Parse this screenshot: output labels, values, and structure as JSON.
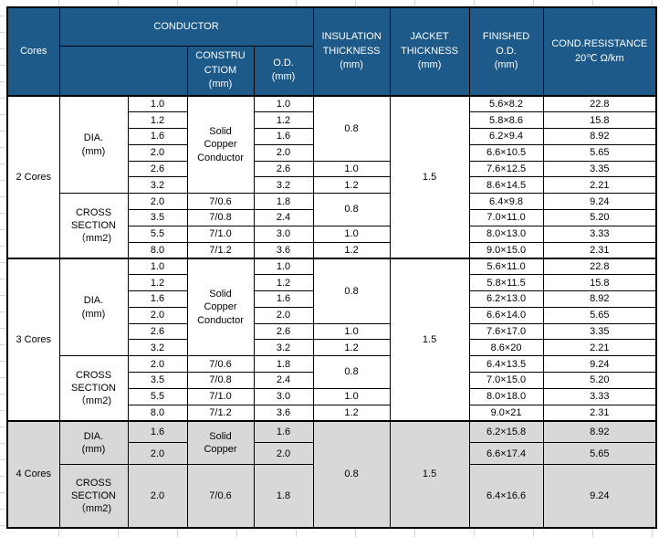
{
  "colors": {
    "header_blue": "#1E5A89",
    "section_gray": "#D8D8D8",
    "header_text": "#FFFFFF",
    "border": "#000000"
  },
  "table": {
    "header": {
      "cores": "Cores",
      "conductor": "CONDUCTOR",
      "conductor_sub_blank": "",
      "construction": "CONSTRU\nCTIOM\n(mm)",
      "od": "O.D.\n(mm)",
      "insulation": "INSULATION\nTHICKNESS\n(mm)",
      "jacket": "JACKET\nTHICKNESS\n(mm)",
      "finished": "FINISHED\nO.D.\n(mm)",
      "resistance": "COND.RESISTANCE\n20℃ Ω/km"
    },
    "body": {
      "rows": [
        {
          "cls": "sec-top",
          "cells": [
            {
              "t": "2 Cores",
              "rs": 10,
              "n": "cores-cell"
            },
            {
              "t": "DIA.\n(mm)",
              "rs": 6,
              "n": "row-label-cell"
            },
            {
              "t": "1.0",
              "n": "conductor-value-cell"
            },
            {
              "t": "Solid\nCopper\nConductor",
              "rs": 6,
              "n": "construction-cell"
            },
            {
              "t": "1.0",
              "n": "conductor-od-cell"
            },
            {
              "t": "0.8",
              "rs": 4,
              "n": "insulation-cell"
            },
            {
              "t": "1.5",
              "rs": 10,
              "n": "jacket-cell"
            },
            {
              "t": "5.6×8.2",
              "n": "finished-od-cell"
            },
            {
              "t": "22.8",
              "n": "resistance-cell"
            }
          ]
        },
        {
          "cells": [
            {
              "t": "1.2",
              "n": "conductor-value-cell"
            },
            {
              "t": "1.2",
              "n": "conductor-od-cell"
            },
            {
              "t": "5.8×8.6",
              "n": "finished-od-cell"
            },
            {
              "t": "15.8",
              "n": "resistance-cell"
            }
          ]
        },
        {
          "cells": [
            {
              "t": "1.6",
              "n": "conductor-value-cell"
            },
            {
              "t": "1.6",
              "n": "conductor-od-cell"
            },
            {
              "t": "6.2×9.4",
              "n": "finished-od-cell"
            },
            {
              "t": "8.92",
              "n": "resistance-cell"
            }
          ]
        },
        {
          "cells": [
            {
              "t": "2.0",
              "n": "conductor-value-cell"
            },
            {
              "t": "2.0",
              "n": "conductor-od-cell"
            },
            {
              "t": "6.6×10.5",
              "n": "finished-od-cell"
            },
            {
              "t": "5.65",
              "n": "resistance-cell"
            }
          ]
        },
        {
          "cells": [
            {
              "t": "2.6",
              "n": "conductor-value-cell"
            },
            {
              "t": "2.6",
              "n": "conductor-od-cell"
            },
            {
              "t": "1.0",
              "n": "insulation-cell"
            },
            {
              "t": "7.6×12.5",
              "n": "finished-od-cell"
            },
            {
              "t": "3.35",
              "n": "resistance-cell"
            }
          ]
        },
        {
          "cells": [
            {
              "t": "3.2",
              "n": "conductor-value-cell"
            },
            {
              "t": "3.2",
              "n": "conductor-od-cell"
            },
            {
              "t": "1.2",
              "n": "insulation-cell"
            },
            {
              "t": "8.6×14.5",
              "n": "finished-od-cell"
            },
            {
              "t": "2.21",
              "n": "resistance-cell"
            }
          ]
        },
        {
          "cells": [
            {
              "t": "CROSS\nSECTION\n（mm2)",
              "rs": 4,
              "n": "row-label-cell"
            },
            {
              "t": "2.0",
              "n": "conductor-value-cell"
            },
            {
              "t": "7/0.6",
              "n": "construction-cell"
            },
            {
              "t": "1.8",
              "n": "conductor-od-cell"
            },
            {
              "t": "0.8",
              "rs": 2,
              "n": "insulation-cell"
            },
            {
              "t": "6.4×9.8",
              "n": "finished-od-cell"
            },
            {
              "t": "9.24",
              "n": "resistance-cell"
            }
          ]
        },
        {
          "cells": [
            {
              "t": "3.5",
              "n": "conductor-value-cell"
            },
            {
              "t": "7/0.8",
              "n": "construction-cell"
            },
            {
              "t": "2.4",
              "n": "conductor-od-cell"
            },
            {
              "t": "7.0×11.0",
              "n": "finished-od-cell"
            },
            {
              "t": "5.20",
              "n": "resistance-cell"
            }
          ]
        },
        {
          "cells": [
            {
              "t": "5.5",
              "n": "conductor-value-cell"
            },
            {
              "t": "7/1.0",
              "n": "construction-cell"
            },
            {
              "t": "3.0",
              "n": "conductor-od-cell"
            },
            {
              "t": "1.0",
              "n": "insulation-cell"
            },
            {
              "t": "8.0×13.0",
              "n": "finished-od-cell"
            },
            {
              "t": "3.33",
              "n": "resistance-cell"
            }
          ]
        },
        {
          "cells": [
            {
              "t": "8.0",
              "n": "conductor-value-cell"
            },
            {
              "t": "7/1.2",
              "n": "construction-cell"
            },
            {
              "t": "3.6",
              "n": "conductor-od-cell"
            },
            {
              "t": "1.2",
              "n": "insulation-cell"
            },
            {
              "t": "9.0×15.0",
              "n": "finished-od-cell"
            },
            {
              "t": "2.31",
              "n": "resistance-cell"
            }
          ]
        },
        {
          "cls": "sec-top",
          "cells": [
            {
              "t": "3 Cores",
              "rs": 10,
              "n": "cores-cell"
            },
            {
              "t": "DIA.\n(mm)",
              "rs": 6,
              "n": "row-label-cell"
            },
            {
              "t": "1.0",
              "n": "conductor-value-cell"
            },
            {
              "t": "Solid\nCopper\nConductor",
              "rs": 6,
              "n": "construction-cell"
            },
            {
              "t": "1.0",
              "n": "conductor-od-cell"
            },
            {
              "t": "0.8",
              "rs": 4,
              "n": "insulation-cell"
            },
            {
              "t": "1.5",
              "rs": 10,
              "n": "jacket-cell"
            },
            {
              "t": "5.6×11.0",
              "n": "finished-od-cell"
            },
            {
              "t": "22.8",
              "n": "resistance-cell"
            }
          ]
        },
        {
          "cells": [
            {
              "t": "1.2",
              "n": "conductor-value-cell"
            },
            {
              "t": "1.2",
              "n": "conductor-od-cell"
            },
            {
              "t": "5.8×11.5",
              "n": "finished-od-cell"
            },
            {
              "t": "15.8",
              "n": "resistance-cell"
            }
          ]
        },
        {
          "cells": [
            {
              "t": "1.6",
              "n": "conductor-value-cell"
            },
            {
              "t": "1.6",
              "n": "conductor-od-cell"
            },
            {
              "t": "6.2×13.0",
              "n": "finished-od-cell"
            },
            {
              "t": "8.92",
              "n": "resistance-cell"
            }
          ]
        },
        {
          "cells": [
            {
              "t": "2.0",
              "n": "conductor-value-cell"
            },
            {
              "t": "2.0",
              "n": "conductor-od-cell"
            },
            {
              "t": "6.6×14.0",
              "n": "finished-od-cell"
            },
            {
              "t": "5.65",
              "n": "resistance-cell"
            }
          ]
        },
        {
          "cells": [
            {
              "t": "2.6",
              "n": "conductor-value-cell"
            },
            {
              "t": "2.6",
              "n": "conductor-od-cell"
            },
            {
              "t": "1.0",
              "n": "insulation-cell"
            },
            {
              "t": "7.6×17.0",
              "n": "finished-od-cell"
            },
            {
              "t": "3.35",
              "n": "resistance-cell"
            }
          ]
        },
        {
          "cells": [
            {
              "t": "3.2",
              "n": "conductor-value-cell"
            },
            {
              "t": "3.2",
              "n": "conductor-od-cell"
            },
            {
              "t": "1.2",
              "n": "insulation-cell"
            },
            {
              "t": "8.6×20",
              "n": "finished-od-cell"
            },
            {
              "t": "2.21",
              "n": "resistance-cell"
            }
          ]
        },
        {
          "cells": [
            {
              "t": "CROSS\nSECTION\n（mm2)",
              "rs": 4,
              "n": "row-label-cell"
            },
            {
              "t": "2.0",
              "n": "conductor-value-cell"
            },
            {
              "t": "7/0.6",
              "n": "construction-cell"
            },
            {
              "t": "1.8",
              "n": "conductor-od-cell"
            },
            {
              "t": "0.8",
              "rs": 2,
              "n": "insulation-cell"
            },
            {
              "t": "6.4×13.5",
              "n": "finished-od-cell"
            },
            {
              "t": "9.24",
              "n": "resistance-cell"
            }
          ]
        },
        {
          "cells": [
            {
              "t": "3.5",
              "n": "conductor-value-cell"
            },
            {
              "t": "7/0.8",
              "n": "construction-cell"
            },
            {
              "t": "2.4",
              "n": "conductor-od-cell"
            },
            {
              "t": "7.0×15.0",
              "n": "finished-od-cell"
            },
            {
              "t": "5.20",
              "n": "resistance-cell"
            }
          ]
        },
        {
          "cells": [
            {
              "t": "5.5",
              "n": "conductor-value-cell"
            },
            {
              "t": "7/1.0",
              "n": "construction-cell"
            },
            {
              "t": "3.0",
              "n": "conductor-od-cell"
            },
            {
              "t": "1.0",
              "n": "insulation-cell"
            },
            {
              "t": "8.0×18.0",
              "n": "finished-od-cell"
            },
            {
              "t": "3.33",
              "n": "resistance-cell"
            }
          ]
        },
        {
          "cells": [
            {
              "t": "8.0",
              "n": "conductor-value-cell"
            },
            {
              "t": "7/1.2",
              "n": "construction-cell"
            },
            {
              "t": "3.6",
              "n": "conductor-od-cell"
            },
            {
              "t": "1.2",
              "n": "insulation-cell"
            },
            {
              "t": "9.0×21",
              "n": "finished-od-cell"
            },
            {
              "t": "2.31",
              "n": "resistance-cell"
            }
          ]
        },
        {
          "cls": "gray sec-top h24",
          "cells": [
            {
              "t": "4 Cores",
              "rs": 3,
              "n": "cores-cell"
            },
            {
              "t": "DIA.\n(mm)",
              "rs": 2,
              "n": "row-label-cell"
            },
            {
              "t": "1.6",
              "n": "conductor-value-cell"
            },
            {
              "t": "Solid\nCopper",
              "rs": 2,
              "n": "construction-cell"
            },
            {
              "t": "1.6",
              "n": "conductor-od-cell"
            },
            {
              "t": "0.8",
              "rs": 3,
              "n": "insulation-cell"
            },
            {
              "t": "1.5",
              "rs": 3,
              "n": "jacket-cell"
            },
            {
              "t": "6.2×15.8",
              "n": "finished-od-cell"
            },
            {
              "t": "8.92",
              "n": "resistance-cell"
            }
          ]
        },
        {
          "cls": "gray h24",
          "cells": [
            {
              "t": "2.0",
              "n": "conductor-value-cell"
            },
            {
              "t": "2.0",
              "n": "conductor-od-cell"
            },
            {
              "t": "6.6×17.4",
              "n": "finished-od-cell"
            },
            {
              "t": "5.65",
              "n": "resistance-cell"
            }
          ]
        },
        {
          "cls": "gray h68",
          "cells": [
            {
              "t": "CROSS\nSECTION\n（mm2)",
              "n": "row-label-cell"
            },
            {
              "t": "2.0",
              "n": "conductor-value-cell"
            },
            {
              "t": "7/0.6",
              "n": "construction-cell"
            },
            {
              "t": "1.8",
              "n": "conductor-od-cell"
            },
            {
              "t": "6.4×16.6",
              "n": "finished-od-cell"
            },
            {
              "t": "9.24",
              "n": "resistance-cell"
            }
          ]
        }
      ]
    }
  }
}
